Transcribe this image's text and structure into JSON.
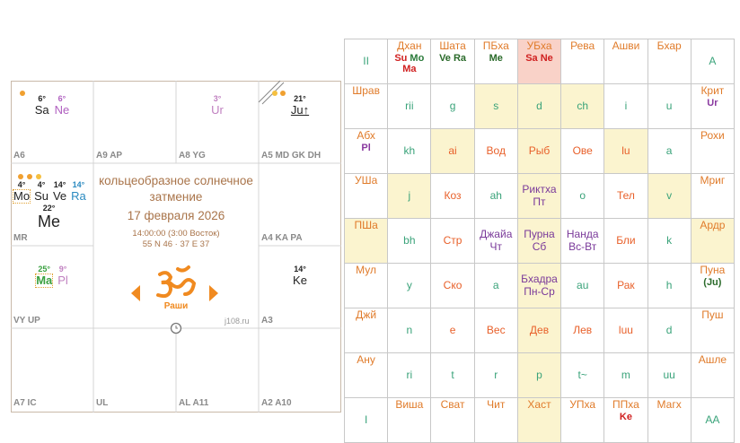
{
  "chart": {
    "cells": [
      {
        "lines": [
          [
            {
              "deg": "6°",
              "name": "Sa",
              "color": "#222222"
            },
            {
              "deg": "6°",
              "name": "Ne",
              "color": "#b060c0"
            }
          ]
        ],
        "label": "A6"
      },
      {
        "label": "A9 AP"
      },
      {
        "lines": [
          [
            {
              "deg": "3°",
              "name": "Ur",
              "color": "#c080c0"
            }
          ]
        ],
        "label": "A8 YG"
      },
      {
        "lines": [
          [
            {
              "deg": "21°",
              "name": "Ju↑",
              "color": "#222222"
            }
          ]
        ],
        "label": "A5 MD GK DH"
      },
      {
        "lines": [
          [
            {
              "deg": "4°",
              "name": "Mo",
              "color": "#222222"
            },
            {
              "deg": "4°",
              "name": "Su",
              "color": "#222222"
            },
            {
              "deg": "14°",
              "name": "Ve",
              "color": "#222222"
            },
            {
              "deg": "14°",
              "name": "Ra",
              "color": "#2a8ac0"
            }
          ],
          [
            {
              "deg": "22°",
              "name": "Me",
              "color": "#222222"
            }
          ]
        ],
        "label": "MR"
      },
      {
        "label": "A4 KA PA"
      },
      {
        "lines": [
          [
            {
              "deg": "25°",
              "name": "Ma",
              "color": "#3aa040"
            },
            {
              "deg": "9°",
              "name": "Pl",
              "color": "#c080c0"
            }
          ]
        ],
        "label": "VY UP"
      },
      {
        "lines": [
          [
            {
              "deg": "14°",
              "name": "Ke",
              "color": "#222222"
            }
          ]
        ],
        "label": "A3"
      },
      {
        "label": "A7 IC"
      },
      {
        "label": "UL"
      },
      {
        "label": "AL A11"
      },
      {
        "label": "A2 A10"
      }
    ],
    "center": {
      "title": "кольцеобразное солнечное затмение",
      "date": "17 февраля 2026",
      "time": "14:00:00 (3:00 Восток)",
      "coords": "55 N 46 · 37 E 37",
      "mode": "Раши",
      "site": "j108.ru"
    }
  },
  "table": {
    "rows": [
      [
        {
          "text": "II"
        },
        {
          "text": "Дхан",
          "planets": [
            {
              "name": "Su",
              "color": "#d02020"
            },
            {
              "name": "Mo",
              "color": "#2a7a3a"
            },
            {
              "name": "Ma",
              "color": "#d02020"
            }
          ]
        },
        {
          "text": "Шата",
          "planets": [
            {
              "name": "Ve",
              "color": "#2a6a2a"
            },
            {
              "name": "Ra",
              "color": "#2a6a2a"
            }
          ]
        },
        {
          "text": "ПБха",
          "planets": [
            {
              "name": "Me",
              "color": "#2a6a2a"
            }
          ]
        },
        {
          "text": "УБха",
          "planets": [
            {
              "name": "Sa",
              "color": "#d02020"
            },
            {
              "name": "Ne",
              "color": "#d02020"
            }
          ]
        },
        {
          "text": "Рева"
        },
        {
          "text": "Ашви"
        },
        {
          "text": "Бхар"
        },
        {
          "text": "A"
        }
      ],
      [
        {
          "text": "Шрав"
        },
        {
          "text": "rii"
        },
        {
          "text": "g"
        },
        {
          "text": "s"
        },
        {
          "text": "d"
        },
        {
          "text": "ch"
        },
        {
          "text": "i"
        },
        {
          "text": "u"
        },
        {
          "text": "Крит",
          "planets": [
            {
              "name": "Ur",
              "color": "#8a3aa0"
            }
          ]
        }
      ],
      [
        {
          "text": "Абх",
          "planets": [
            {
              "name": "Pl",
              "color": "#8a3aa0"
            }
          ]
        },
        {
          "text": "kh"
        },
        {
          "text": "ai"
        },
        {
          "text": "Вод"
        },
        {
          "text": "Рыб"
        },
        {
          "text": "Ове"
        },
        {
          "text": "lu"
        },
        {
          "text": "a"
        },
        {
          "text": "Рохи"
        }
      ],
      [
        {
          "text": "УШа"
        },
        {
          "text": "j"
        },
        {
          "text": "Коз"
        },
        {
          "text": "ah"
        },
        {
          "text": "Риктха",
          "sub": "Пт"
        },
        {
          "text": "o"
        },
        {
          "text": "Тел"
        },
        {
          "text": "v"
        },
        {
          "text": "Мриг"
        }
      ],
      [
        {
          "text": "ПШа"
        },
        {
          "text": "bh"
        },
        {
          "text": "Стр"
        },
        {
          "text": "Джайа",
          "sub": "Чт"
        },
        {
          "text": "Пурна",
          "sub": "Сб"
        },
        {
          "text": "Нанда",
          "sub": "Вс-Вт"
        },
        {
          "text": "Бли"
        },
        {
          "text": "k"
        },
        {
          "text": "Ардр"
        }
      ],
      [
        {
          "text": "Мул"
        },
        {
          "text": "y"
        },
        {
          "text": "Ско"
        },
        {
          "text": "a"
        },
        {
          "text": "Бхадра",
          "sub": "Пн-Ср"
        },
        {
          "text": "au"
        },
        {
          "text": "Рак"
        },
        {
          "text": "h"
        },
        {
          "text": "Пуна",
          "planets": [
            {
              "name": "(Ju)",
              "color": "#2a6a2a"
            }
          ]
        }
      ],
      [
        {
          "text": "Джй"
        },
        {
          "text": "n"
        },
        {
          "text": "e"
        },
        {
          "text": "Вес"
        },
        {
          "text": "Дев"
        },
        {
          "text": "Лев"
        },
        {
          "text": "luu"
        },
        {
          "text": "d"
        },
        {
          "text": "Пуш"
        }
      ],
      [
        {
          "text": "Ану"
        },
        {
          "text": "ri"
        },
        {
          "text": "t"
        },
        {
          "text": "r"
        },
        {
          "text": "p"
        },
        {
          "text": "t~"
        },
        {
          "text": "m"
        },
        {
          "text": "uu"
        },
        {
          "text": "Ашле"
        }
      ],
      [
        {
          "text": "I"
        },
        {
          "text": "Виша"
        },
        {
          "text": "Сват"
        },
        {
          "text": "Чит"
        },
        {
          "text": "Хаст"
        },
        {
          "text": "УПха"
        },
        {
          "text": "ППха",
          "planets": [
            {
              "name": "Ke",
              "color": "#d02020"
            }
          ]
        },
        {
          "text": "Магх"
        },
        {
          "text": "AA"
        }
      ]
    ]
  }
}
